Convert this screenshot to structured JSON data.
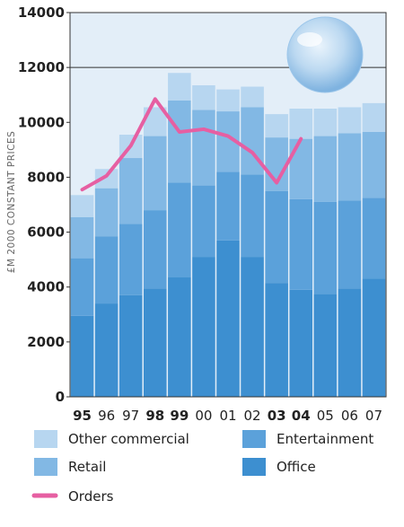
{
  "chart_data": {
    "type": "bar",
    "stacked": true,
    "ylabel": "£M 2000 CONSTANT PRICES",
    "ylim": [
      0,
      14000
    ],
    "yticks": [
      "0",
      "2000",
      "4000",
      "6000",
      "8000",
      "10000",
      "12000",
      "14000"
    ],
    "categories": [
      "95",
      "96",
      "97",
      "98",
      "99",
      "00",
      "01",
      "02",
      "03",
      "04",
      "05",
      "06",
      "07"
    ],
    "bold_categories": [
      "95",
      "98",
      "99",
      "03",
      "04"
    ],
    "gridlines": [
      12000
    ],
    "series": [
      {
        "name": "Office",
        "color": "#3d8fd0",
        "values": [
          2950,
          3400,
          3700,
          3950,
          4350,
          5100,
          5700,
          5100,
          4150,
          3900,
          3750,
          3950,
          4300
        ]
      },
      {
        "name": "Entertainment",
        "color": "#5ba1da",
        "values": [
          2100,
          2450,
          2600,
          2850,
          3450,
          2600,
          2500,
          3000,
          3350,
          3300,
          3350,
          3200,
          2950
        ]
      },
      {
        "name": "Retail",
        "color": "#82b8e4",
        "values": [
          1500,
          1750,
          2400,
          2700,
          3000,
          2750,
          2200,
          2450,
          1950,
          2200,
          2400,
          2450,
          2400
        ]
      },
      {
        "name": "Other commercial",
        "color": "#b7d6f0",
        "values": [
          800,
          700,
          850,
          1050,
          1000,
          900,
          800,
          750,
          850,
          1100,
          1000,
          950,
          1050
        ]
      }
    ],
    "line_series": {
      "name": "Orders",
      "color": "#e65fa2",
      "x": [
        "95",
        "96",
        "97",
        "98",
        "99",
        "00",
        "01",
        "02",
        "03",
        "04"
      ],
      "values": [
        7550,
        8050,
        9150,
        10850,
        9650,
        9750,
        9500,
        8900,
        7800,
        9400
      ]
    },
    "legend": [
      {
        "label": "Other commercial",
        "color": "#b7d6f0",
        "kind": "swatch"
      },
      {
        "label": "Entertainment",
        "color": "#5ba1da",
        "kind": "swatch"
      },
      {
        "label": "Retail",
        "color": "#82b8e4",
        "kind": "swatch"
      },
      {
        "label": "Office",
        "color": "#3d8fd0",
        "kind": "swatch"
      },
      {
        "label": "Orders",
        "color": "#e65fa2",
        "kind": "line"
      }
    ],
    "legend_placement": "bottom"
  }
}
